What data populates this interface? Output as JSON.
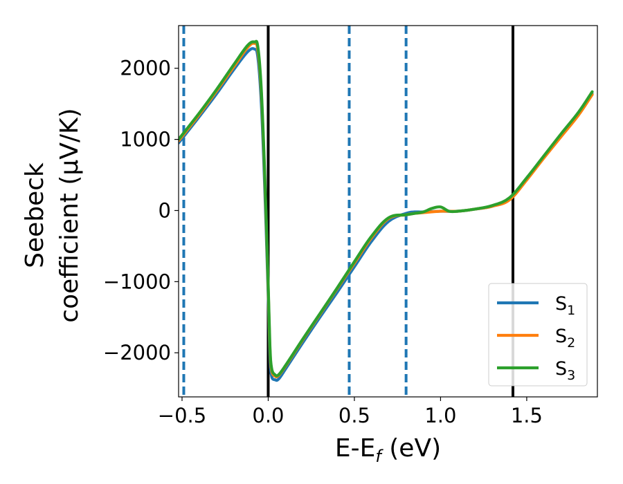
{
  "chart_data": {
    "type": "line",
    "title": "",
    "xlabel": "E-E$_f$ (eV)",
    "xlabel_parts": {
      "main": "E-E",
      "sub": "f",
      "tail": " (eV)"
    },
    "ylabel_lines": [
      "Seebeck",
      "coefficient  (μV/K)"
    ],
    "xlim": [
      -0.52,
      1.91
    ],
    "ylim": [
      -2620,
      2600
    ],
    "xticks": [
      -0.5,
      0.0,
      0.5,
      1.0,
      1.5
    ],
    "xtick_labels": [
      "−0.5",
      "0.0",
      "0.5",
      "1.0",
      "1.5"
    ],
    "yticks": [
      -2000,
      -1000,
      0,
      1000,
      2000
    ],
    "ytick_labels": [
      "−2000",
      "−1000",
      "0",
      "1000",
      "2000"
    ],
    "grid": false,
    "legend_position": "lower-right",
    "vlines_solid": [
      0.0,
      1.42
    ],
    "vlines_dashed": [
      -0.49,
      0.47,
      0.8
    ],
    "vline_solid_color": "#000000",
    "vline_dashed_color": "#1f77b4",
    "series": [
      {
        "name": "S1",
        "label_main": "S",
        "label_sub": "1",
        "color": "#1f77b4",
        "x": [
          -0.52,
          -0.4,
          -0.3,
          -0.2,
          -0.12,
          -0.08,
          -0.06,
          -0.04,
          -0.02,
          0.0,
          0.01,
          0.02,
          0.04,
          0.06,
          0.1,
          0.2,
          0.3,
          0.4,
          0.5,
          0.6,
          0.7,
          0.8,
          0.85,
          0.9,
          1.0,
          1.1,
          1.2,
          1.3,
          1.4,
          1.5,
          1.6,
          1.7,
          1.8,
          1.88
        ],
        "y": [
          950,
          1320,
          1640,
          1980,
          2230,
          2270,
          2150,
          1500,
          300,
          -1200,
          -2050,
          -2330,
          -2380,
          -2370,
          -2230,
          -1860,
          -1500,
          -1150,
          -790,
          -430,
          -150,
          -40,
          -20,
          -20,
          -10,
          -10,
          20,
          60,
          160,
          450,
          760,
          1060,
          1360,
          1640
        ]
      },
      {
        "name": "S2",
        "label_main": "S",
        "label_sub": "2",
        "color": "#ff7f0e",
        "x": [
          -0.52,
          -0.4,
          -0.3,
          -0.2,
          -0.12,
          -0.08,
          -0.06,
          -0.04,
          -0.02,
          0.0,
          0.01,
          0.02,
          0.04,
          0.06,
          0.1,
          0.2,
          0.3,
          0.4,
          0.5,
          0.6,
          0.7,
          0.8,
          0.85,
          0.9,
          1.0,
          1.1,
          1.2,
          1.3,
          1.4,
          1.5,
          1.6,
          1.7,
          1.8,
          1.88
        ],
        "y": [
          980,
          1350,
          1680,
          2020,
          2290,
          2350,
          2250,
          1650,
          450,
          -1100,
          -1950,
          -2250,
          -2330,
          -2320,
          -2190,
          -1820,
          -1460,
          -1100,
          -740,
          -380,
          -110,
          -60,
          -40,
          -30,
          -10,
          -10,
          20,
          60,
          150,
          430,
          740,
          1040,
          1340,
          1630
        ]
      },
      {
        "name": "S3",
        "label_main": "S",
        "label_sub": "3",
        "color": "#2ca02c",
        "x": [
          -0.52,
          -0.4,
          -0.3,
          -0.2,
          -0.12,
          -0.08,
          -0.06,
          -0.04,
          -0.02,
          0.0,
          0.01,
          0.02,
          0.04,
          0.06,
          0.1,
          0.2,
          0.3,
          0.4,
          0.5,
          0.6,
          0.7,
          0.8,
          0.85,
          0.9,
          0.95,
          1.0,
          1.05,
          1.1,
          1.2,
          1.3,
          1.4,
          1.5,
          1.6,
          1.7,
          1.8,
          1.88
        ],
        "y": [
          1000,
          1370,
          1700,
          2050,
          2320,
          2370,
          2300,
          1700,
          500,
          -1050,
          -1900,
          -2220,
          -2310,
          -2310,
          -2180,
          -1810,
          -1450,
          -1090,
          -720,
          -360,
          -100,
          -60,
          -40,
          -20,
          30,
          50,
          -10,
          -10,
          20,
          70,
          180,
          460,
          770,
          1080,
          1380,
          1670
        ]
      }
    ]
  }
}
